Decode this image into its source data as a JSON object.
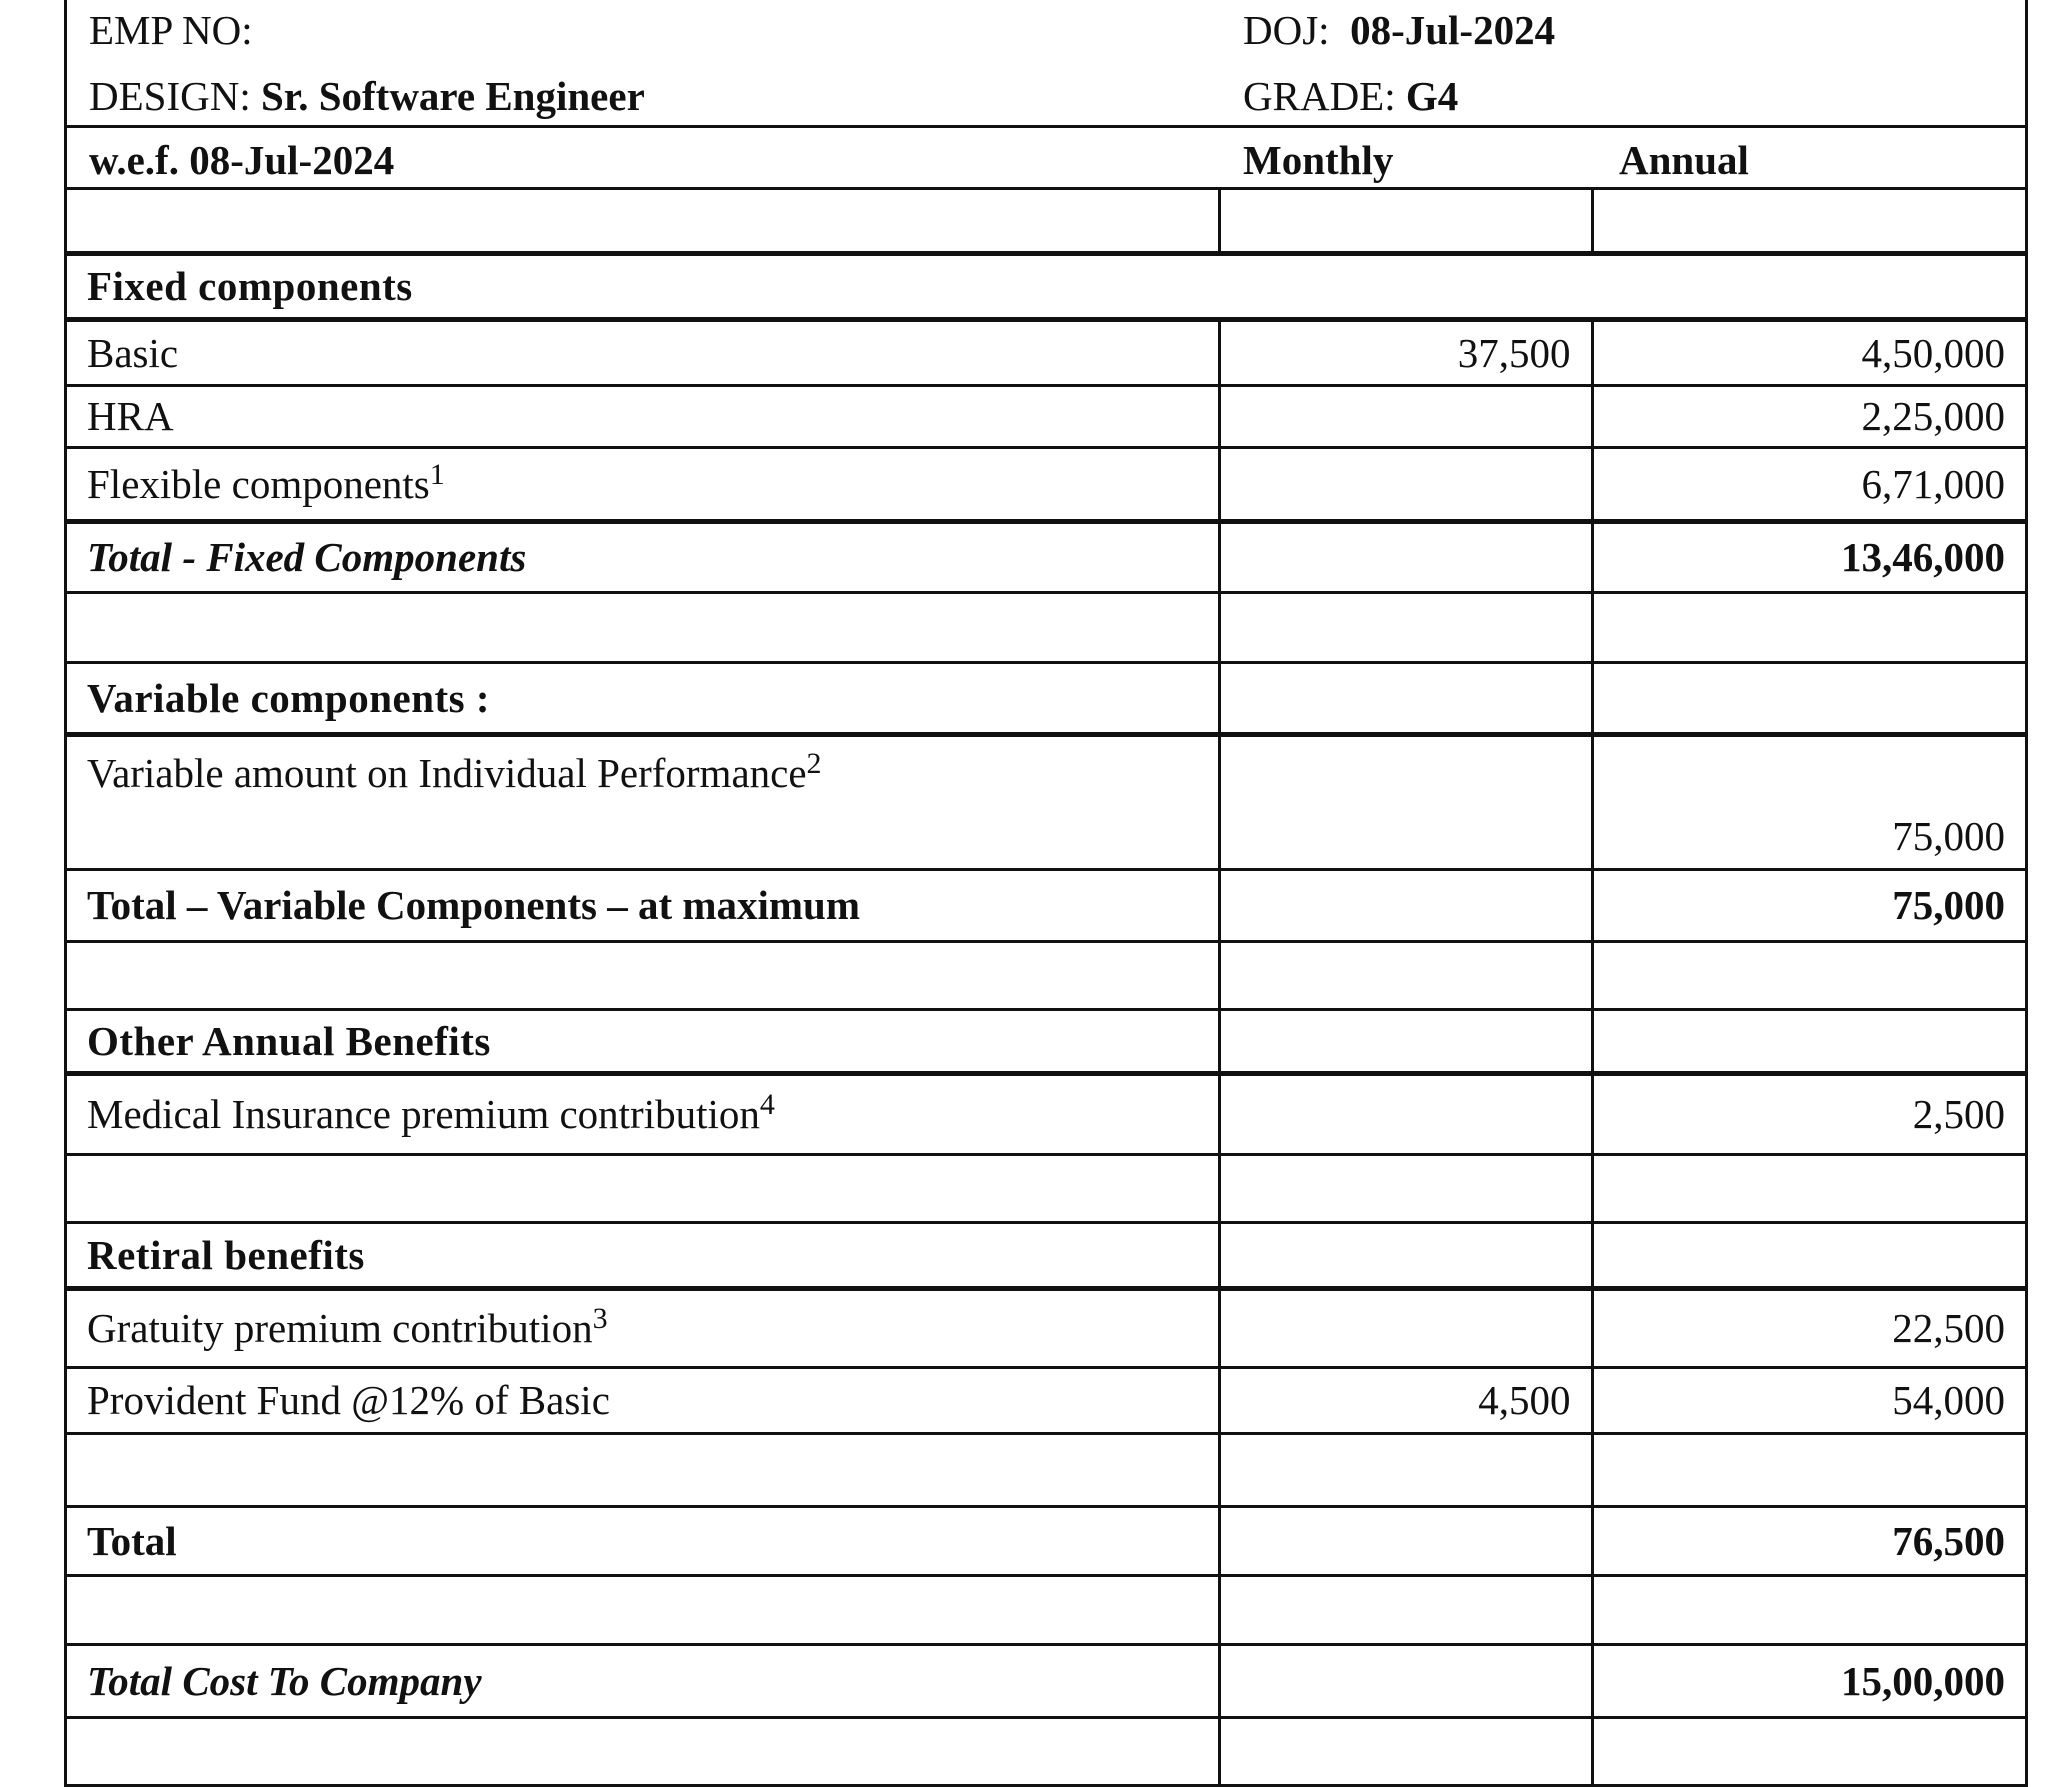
{
  "header": {
    "emp_no_label": "EMP NO:",
    "doj_label": "DOJ:",
    "doj_value": "08-Jul-2024",
    "design_label": "DESIGN:",
    "design_value": "Sr. Software Engineer",
    "grade_label": "GRADE:",
    "grade_value": "G4",
    "wef": "w.e.f. 08-Jul-2024",
    "monthly": "Monthly",
    "annual": "Annual"
  },
  "rows": [
    {
      "type": "empty"
    },
    {
      "type": "section",
      "label": "Fixed components",
      "span": true,
      "thickTop": true
    },
    {
      "type": "item",
      "label": "Basic",
      "monthly": "37,500",
      "annual": "4,50,000"
    },
    {
      "type": "item",
      "label": "HRA",
      "monthly": "",
      "annual": "2,25,000"
    },
    {
      "type": "item",
      "label": "Flexible components",
      "sup": "1",
      "monthly": "",
      "annual": "6,71,000",
      "thick": true
    },
    {
      "type": "total",
      "italic": true,
      "label": "Total - Fixed Components",
      "monthly": "",
      "annual": "13,46,000"
    },
    {
      "type": "empty"
    },
    {
      "type": "section",
      "label": "Variable components :"
    },
    {
      "type": "item",
      "tall": true,
      "label": "Variable amount on Individual Performance",
      "sup": "2",
      "monthly": "",
      "annual": "75,000"
    },
    {
      "type": "total",
      "label": "Total – Variable Components – at maximum",
      "monthly": "",
      "annual": "75,000"
    },
    {
      "type": "empty"
    },
    {
      "type": "section",
      "label": "Other Annual Benefits"
    },
    {
      "type": "item",
      "label": "Medical Insurance premium contribution",
      "sup": "4",
      "monthly": "",
      "annual": "2,500"
    },
    {
      "type": "empty"
    },
    {
      "type": "section",
      "label": "Retiral benefits"
    },
    {
      "type": "item",
      "label": "Gratuity premium contribution",
      "sup": "3",
      "monthly": "",
      "annual": "22,500"
    },
    {
      "type": "item",
      "label": "Provident Fund @12% of Basic",
      "monthly": "4,500",
      "annual": "54,000"
    },
    {
      "type": "empty"
    },
    {
      "type": "total",
      "label": "Total",
      "monthly": "",
      "annual": "76,500"
    },
    {
      "type": "empty"
    },
    {
      "type": "total",
      "italic": true,
      "label": "Total Cost To Company",
      "monthly": "",
      "annual": "15,00,000"
    },
    {
      "type": "empty"
    }
  ]
}
